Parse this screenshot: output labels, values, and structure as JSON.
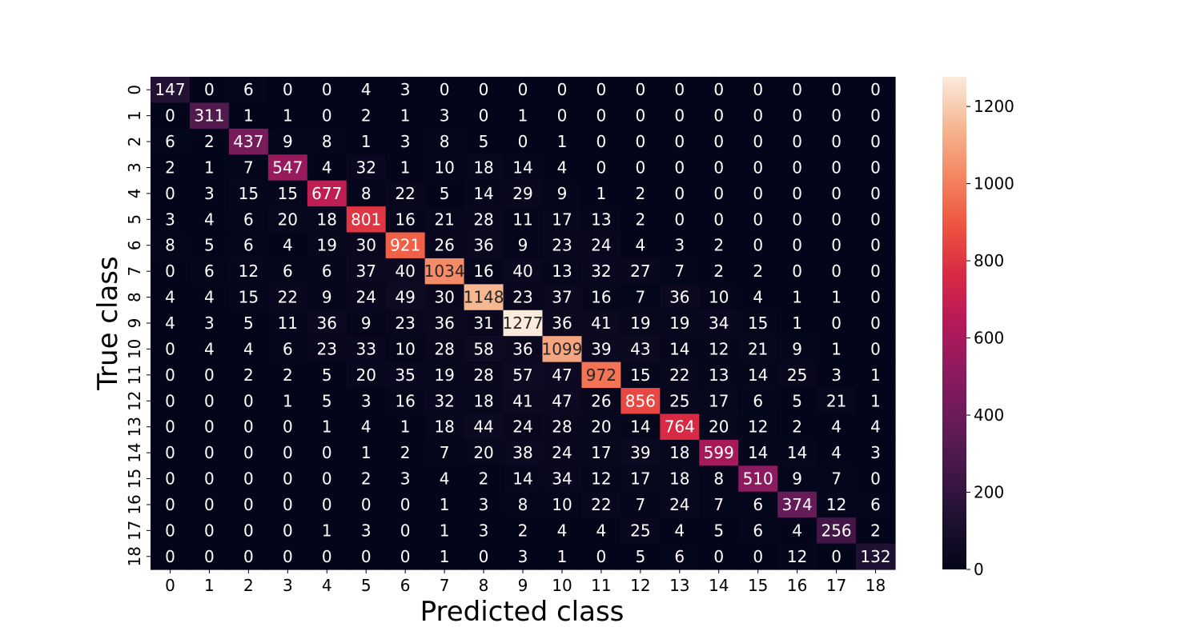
{
  "chart_data": {
    "type": "heatmap",
    "title": "",
    "xlabel": "Predicted class",
    "ylabel": "True class",
    "x_categories": [
      "0",
      "1",
      "2",
      "3",
      "4",
      "5",
      "6",
      "7",
      "8",
      "9",
      "10",
      "11",
      "12",
      "13",
      "14",
      "15",
      "16",
      "17",
      "18"
    ],
    "y_categories": [
      "0",
      "1",
      "2",
      "3",
      "4",
      "5",
      "6",
      "7",
      "8",
      "9",
      "10",
      "11",
      "12",
      "13",
      "14",
      "15",
      "16",
      "17",
      "18"
    ],
    "values": [
      [
        147,
        0,
        6,
        0,
        0,
        4,
        3,
        0,
        0,
        0,
        0,
        0,
        0,
        0,
        0,
        0,
        0,
        0,
        0
      ],
      [
        0,
        311,
        1,
        1,
        0,
        2,
        1,
        3,
        0,
        1,
        0,
        0,
        0,
        0,
        0,
        0,
        0,
        0,
        0
      ],
      [
        6,
        2,
        437,
        9,
        8,
        1,
        3,
        8,
        5,
        0,
        1,
        0,
        0,
        0,
        0,
        0,
        0,
        0,
        0
      ],
      [
        2,
        1,
        7,
        547,
        4,
        32,
        1,
        10,
        18,
        14,
        4,
        0,
        0,
        0,
        0,
        0,
        0,
        0,
        0
      ],
      [
        0,
        3,
        15,
        15,
        677,
        8,
        22,
        5,
        14,
        29,
        9,
        1,
        2,
        0,
        0,
        0,
        0,
        0,
        0
      ],
      [
        3,
        4,
        6,
        20,
        18,
        801,
        16,
        21,
        28,
        11,
        17,
        13,
        2,
        0,
        0,
        0,
        0,
        0,
        0
      ],
      [
        8,
        5,
        6,
        4,
        19,
        30,
        921,
        26,
        36,
        9,
        23,
        24,
        4,
        3,
        2,
        0,
        0,
        0,
        0
      ],
      [
        0,
        6,
        12,
        6,
        6,
        37,
        40,
        1034,
        16,
        40,
        13,
        32,
        27,
        7,
        2,
        2,
        0,
        0,
        0
      ],
      [
        4,
        4,
        15,
        22,
        9,
        24,
        49,
        30,
        1148,
        23,
        37,
        16,
        7,
        36,
        10,
        4,
        1,
        1,
        0
      ],
      [
        4,
        3,
        5,
        11,
        36,
        9,
        23,
        36,
        31,
        1277,
        36,
        41,
        19,
        19,
        34,
        15,
        1,
        0,
        0
      ],
      [
        0,
        4,
        4,
        6,
        23,
        33,
        10,
        28,
        58,
        36,
        1099,
        39,
        43,
        14,
        12,
        21,
        9,
        1,
        0
      ],
      [
        0,
        0,
        2,
        2,
        5,
        20,
        35,
        19,
        28,
        57,
        47,
        972,
        15,
        22,
        13,
        14,
        25,
        3,
        1
      ],
      [
        0,
        0,
        0,
        1,
        5,
        3,
        16,
        32,
        18,
        41,
        47,
        26,
        856,
        25,
        17,
        6,
        5,
        21,
        1
      ],
      [
        0,
        0,
        0,
        0,
        1,
        4,
        1,
        18,
        44,
        24,
        28,
        20,
        14,
        764,
        20,
        12,
        2,
        4,
        4
      ],
      [
        0,
        0,
        0,
        0,
        0,
        1,
        2,
        7,
        20,
        38,
        24,
        17,
        39,
        18,
        599,
        14,
        14,
        4,
        3
      ],
      [
        0,
        0,
        0,
        0,
        0,
        2,
        3,
        4,
        2,
        14,
        34,
        12,
        17,
        18,
        8,
        510,
        9,
        7,
        0
      ],
      [
        0,
        0,
        0,
        0,
        0,
        0,
        0,
        1,
        3,
        8,
        10,
        22,
        7,
        24,
        7,
        6,
        374,
        12,
        6
      ],
      [
        0,
        0,
        0,
        0,
        1,
        3,
        0,
        1,
        3,
        2,
        4,
        4,
        25,
        4,
        5,
        6,
        4,
        256,
        2
      ],
      [
        0,
        0,
        0,
        0,
        0,
        0,
        0,
        1,
        0,
        3,
        1,
        0,
        5,
        6,
        0,
        0,
        12,
        0,
        132
      ]
    ],
    "colorbar": {
      "min": 0,
      "max": 1277,
      "ticks": [
        0,
        200,
        400,
        600,
        800,
        1000,
        1200
      ]
    },
    "colormap": "rocket",
    "colors": {
      "text_on_dark": "#ffffff",
      "text_on_light": "#262626",
      "axis_text": "#000000"
    }
  }
}
